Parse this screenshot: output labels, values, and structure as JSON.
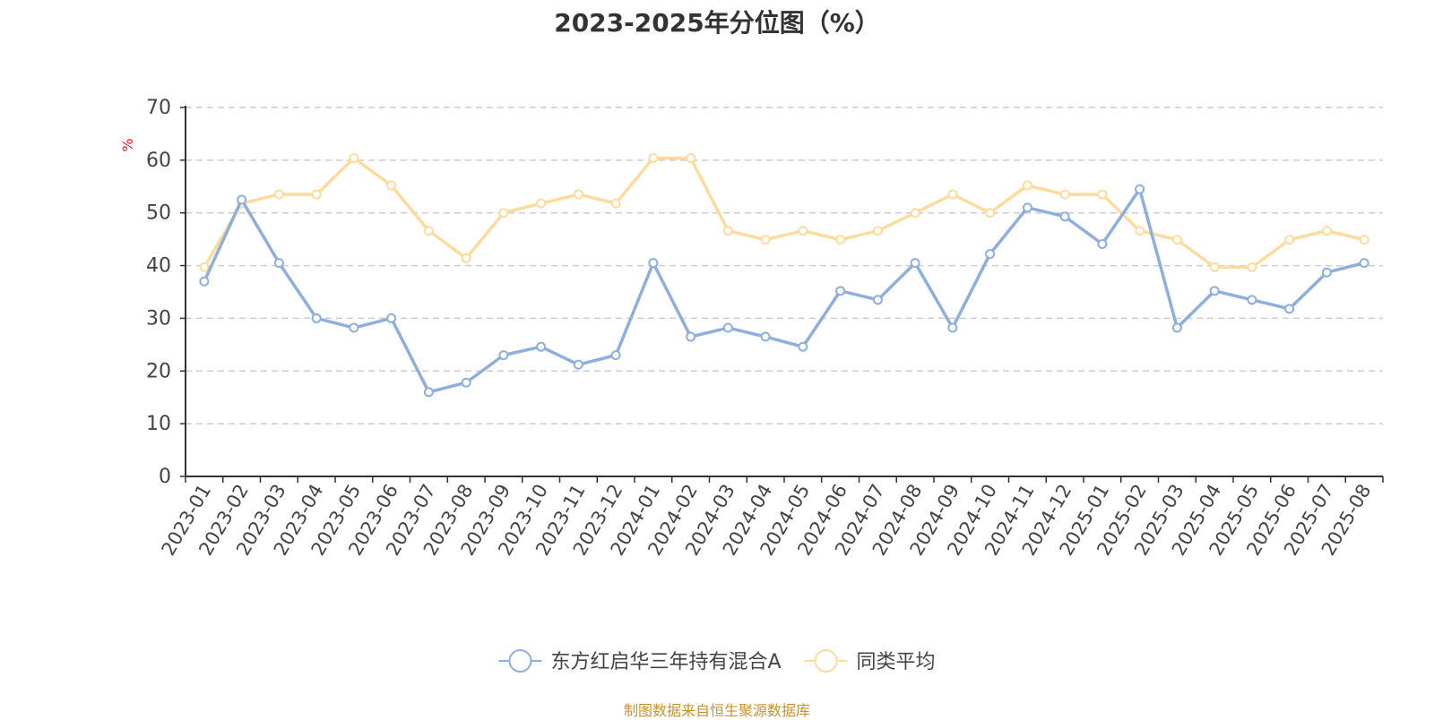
{
  "chart_data": {
    "type": "line",
    "title": "2023-2025年分位图（%）",
    "ylabel": "%",
    "ylim": [
      0,
      70
    ],
    "yticks": [
      0,
      10,
      20,
      30,
      40,
      50,
      60,
      70
    ],
    "grid": true,
    "legend_position": "bottom",
    "categories": [
      "2023-01",
      "2023-02",
      "2023-03",
      "2023-04",
      "2023-05",
      "2023-06",
      "2023-07",
      "2023-08",
      "2023-09",
      "2023-10",
      "2023-11",
      "2023-12",
      "2024-01",
      "2024-02",
      "2024-03",
      "2024-04",
      "2024-05",
      "2024-06",
      "2024-07",
      "2024-08",
      "2024-09",
      "2024-10",
      "2024-11",
      "2024-12",
      "2025-01",
      "2025-02",
      "2025-03",
      "2025-04",
      "2025-05",
      "2025-06",
      "2025-07",
      "2025-08"
    ],
    "series": [
      {
        "name": "东方红启华三年持有混合A",
        "color": "#8eaedb",
        "values": [
          37.0,
          52.5,
          40.5,
          30.0,
          28.2,
          30.0,
          16.0,
          17.8,
          23.0,
          24.6,
          21.2,
          23.0,
          40.5,
          26.5,
          28.2,
          26.5,
          24.6,
          35.2,
          33.5,
          40.5,
          28.2,
          42.2,
          51.0,
          49.3,
          44.1,
          54.5,
          28.2,
          35.2,
          33.5,
          31.8,
          38.7,
          40.5
        ]
      },
      {
        "name": "同类平均",
        "color": "#fddb9d",
        "values": [
          39.7,
          51.8,
          53.5,
          53.5,
          60.4,
          55.2,
          46.6,
          41.4,
          50.0,
          51.8,
          53.5,
          51.8,
          60.4,
          60.4,
          46.6,
          44.9,
          46.6,
          44.9,
          46.6,
          50.0,
          53.5,
          50.0,
          55.2,
          53.5,
          53.5,
          46.6,
          44.9,
          39.7,
          39.7,
          44.9,
          46.6,
          44.9
        ]
      }
    ]
  },
  "footer": {
    "source": "制图数据来自恒生聚源数据库"
  }
}
